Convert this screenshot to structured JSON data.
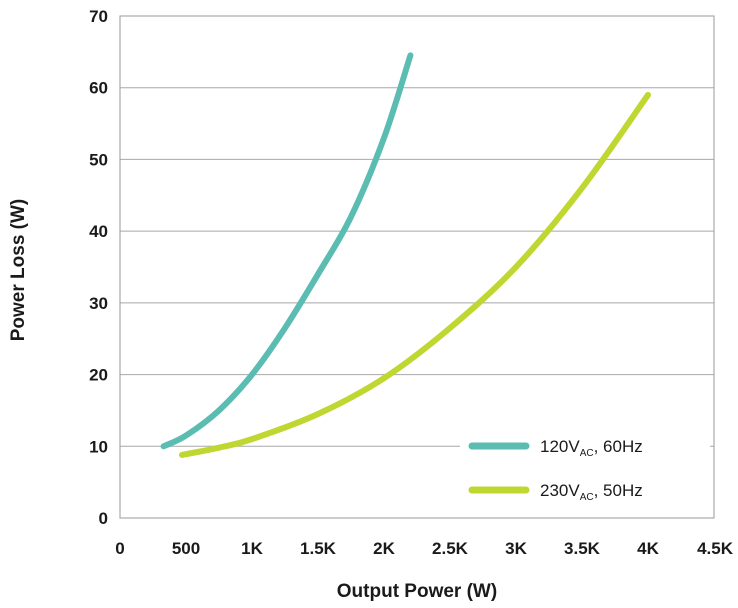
{
  "chart_data": {
    "type": "line",
    "title": "",
    "xlabel": "Output Power (W)",
    "ylabel": "Power Loss (W)",
    "xlim": [
      0,
      4500
    ],
    "ylim": [
      0,
      70
    ],
    "x_ticks": [
      0,
      500,
      1000,
      1500,
      2000,
      2500,
      3000,
      3500,
      4000,
      4500
    ],
    "x_tick_labels": [
      "0",
      "500",
      "1K",
      "1.5K",
      "2K",
      "2.5K",
      "3K",
      "3.5K",
      "4K",
      "4.5K"
    ],
    "y_ticks": [
      0,
      10,
      20,
      30,
      40,
      50,
      60,
      70
    ],
    "y_tick_labels": [
      "0",
      "10",
      "20",
      "30",
      "40",
      "50",
      "60",
      "70"
    ],
    "grid": "horizontal",
    "legend_position": "bottom-right",
    "series": [
      {
        "name": "120VAC, 60Hz",
        "label_main": "120V",
        "label_sub": "AC",
        "label_tail": ", 60Hz",
        "color": "#5bbcb1",
        "x": [
          330,
          500,
          750,
          1000,
          1250,
          1500,
          1750,
          2000,
          2200
        ],
        "y": [
          10,
          11.5,
          15,
          20,
          26.5,
          34,
          42,
          53,
          64.5
        ]
      },
      {
        "name": "230VAC, 50Hz",
        "label_main": "230V",
        "label_sub": "AC",
        "label_tail": ", 50Hz",
        "color": "#bfd730",
        "x": [
          470,
          750,
          1000,
          1500,
          2000,
          2500,
          3000,
          3500,
          4000
        ],
        "y": [
          8.8,
          9.8,
          11,
          14.5,
          19.5,
          26.5,
          35,
          46,
          59
        ]
      }
    ]
  }
}
